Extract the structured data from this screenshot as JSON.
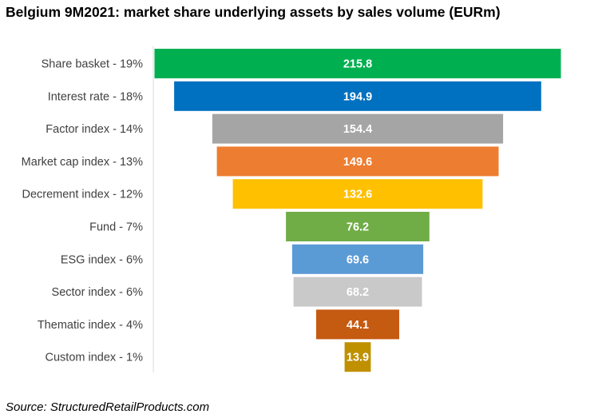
{
  "title": "Belgium 9M2021: market share underlying assets by sales volume (EURm)",
  "source": "Source: StructuredRetailProducts.com",
  "chart_data": {
    "type": "bar",
    "subtype": "funnel",
    "title": "Belgium 9M2021: market share underlying assets by sales volume (EURm)",
    "categories": [
      "Share basket - 19%",
      "Interest rate - 18%",
      "Factor index - 14%",
      "Market cap index - 13%",
      "Decrement index - 12%",
      "Fund - 7%",
      "ESG index - 6%",
      "Sector index - 6%",
      "Thematic index - 4%",
      "Custom index - 1%"
    ],
    "values": [
      215.8,
      194.9,
      154.4,
      149.6,
      132.6,
      76.2,
      69.6,
      68.2,
      44.1,
      13.9
    ],
    "value_labels": [
      "215.8",
      "194.9",
      "154.4",
      "149.6",
      "132.6",
      "76.2",
      "69.6",
      "68.2",
      "44.1",
      "13.9"
    ],
    "colors": [
      "#00B050",
      "#0070C0",
      "#A5A5A5",
      "#ED7D31",
      "#FFC000",
      "#70AD47",
      "#5B9BD5",
      "#C9C9C9",
      "#C55A11",
      "#BF9000"
    ],
    "grid": false,
    "legend": "none"
  }
}
